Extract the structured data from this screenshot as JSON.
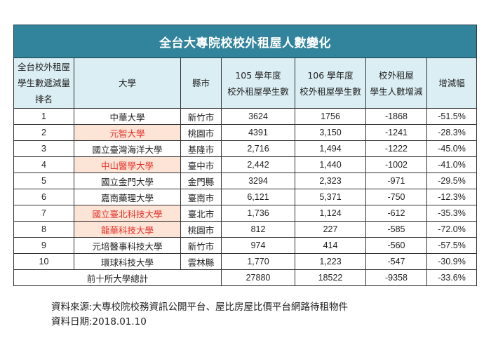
{
  "title": "全台大專院校校外租屋人數變化",
  "headers": [
    [
      "全台校外租屋",
      "學生數遞減量",
      "排名"
    ],
    [
      "大學"
    ],
    [
      "縣市"
    ],
    [
      "105 學年度",
      "校外租屋學生數"
    ],
    [
      "106 學年度",
      "校外租屋學生數"
    ],
    [
      "校外租屋",
      "學生人數增減"
    ],
    [
      "增減幅"
    ]
  ],
  "rows": [
    {
      "rank": "1",
      "university": "中華大學",
      "county": "新竹市",
      "y105": "3624",
      "y106": "1756",
      "change": "-1868",
      "pct": "-51.5%",
      "highlight": false
    },
    {
      "rank": "2",
      "university": "元智大學",
      "county": "桃園市",
      "y105": "4391",
      "y106": "3,150",
      "change": "-1241",
      "pct": "-28.3%",
      "highlight": true
    },
    {
      "rank": "3",
      "university": "國立臺灣海洋大學",
      "county": "基隆市",
      "y105": "2,716",
      "y106": "1,494",
      "change": "-1222",
      "pct": "-45.0%",
      "highlight": false
    },
    {
      "rank": "4",
      "university": "中山醫學大學",
      "county": "臺中市",
      "y105": "2,442",
      "y106": "1,440",
      "change": "-1002",
      "pct": "-41.0%",
      "highlight": true
    },
    {
      "rank": "5",
      "university": "國立金門大學",
      "county": "金門縣",
      "y105": "3294",
      "y106": "2,323",
      "change": "-971",
      "pct": "-29.5%",
      "highlight": false
    },
    {
      "rank": "6",
      "university": "嘉南藥理大學",
      "county": "臺南市",
      "y105": "6,121",
      "y106": "5,371",
      "change": "-750",
      "pct": "-12.3%",
      "highlight": false
    },
    {
      "rank": "7",
      "university": "國立臺北科技大學",
      "county": "臺北市",
      "y105": "1,736",
      "y106": "1,124",
      "change": "-612",
      "pct": "-35.3%",
      "highlight": true
    },
    {
      "rank": "8",
      "university": "龍華科技大學",
      "county": "桃園市",
      "y105": "812",
      "y106": "227",
      "change": "-585",
      "pct": "-72.0%",
      "highlight": true
    },
    {
      "rank": "9",
      "university": "元培醫事科技大學",
      "county": "新竹市",
      "y105": "974",
      "y106": "414",
      "change": "-560",
      "pct": "-57.5%",
      "highlight": false
    },
    {
      "rank": "10",
      "university": "環球科技大學",
      "county": "雲林縣",
      "y105": "1,770",
      "y106": "1,223",
      "change": "-547",
      "pct": "-30.9%",
      "highlight": false
    }
  ],
  "total": {
    "label": "前十所大學總計",
    "y105": "27880",
    "y106": "18522",
    "change": "-9358",
    "pct": "-33.6%"
  },
  "notes": {
    "source": "資料來源:大專校院校務資訊公開平台、屋比房屋比價平台網路待租物件",
    "date": "資料日期:2018.01.10"
  },
  "colors": {
    "title_bg": "#31849b",
    "header_bg": "#daeef3",
    "highlight_bg": "#fce4d6",
    "highlight_text": "#e8302a"
  }
}
